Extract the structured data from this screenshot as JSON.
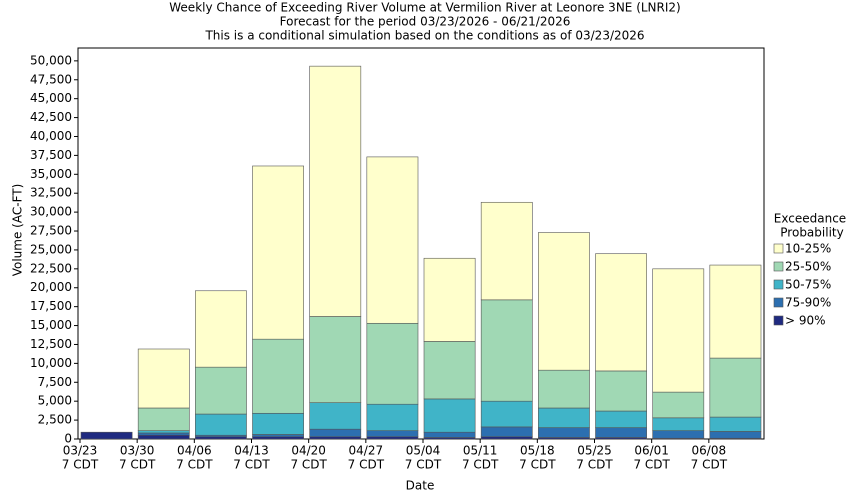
{
  "chart_data": {
    "type": "stacked_bar",
    "title": [
      "Weekly Chance of Exceeding River Volume at Vermilion River at Leonore 3NE (LNRI2)",
      "Forecast for the period 03/23/2026 - 06/21/2026",
      "This is a conditional simulation based on the conditions as of 03/23/2026"
    ],
    "x_label": "Date",
    "y_label": "Volume (AC-FT)",
    "legend_title": [
      "Exceedance",
      "Probability"
    ],
    "legend_position": "right",
    "categories": [
      [
        "03/23",
        "7 CDT"
      ],
      [
        "03/30",
        "7 CDT"
      ],
      [
        "04/06",
        "7 CDT"
      ],
      [
        "04/13",
        "7 CDT"
      ],
      [
        "04/20",
        "7 CDT"
      ],
      [
        "04/27",
        "7 CDT"
      ],
      [
        "05/04",
        "7 CDT"
      ],
      [
        "05/11",
        "7 CDT"
      ],
      [
        "05/18",
        "7 CDT"
      ],
      [
        "05/25",
        "7 CDT"
      ],
      [
        "06/01",
        "7 CDT"
      ],
      [
        "06/08",
        "7 CDT"
      ]
    ],
    "series": [
      {
        "name": "> 90%",
        "color": "#1f2a80",
        "values": [
          900,
          500,
          300,
          300,
          300,
          300,
          200,
          300,
          200,
          200,
          100,
          100
        ]
      },
      {
        "name": "75-90%",
        "color": "#2c6fb0",
        "values": [
          0,
          300,
          200,
          300,
          1000,
          800,
          700,
          1300,
          1300,
          1300,
          1000,
          900
        ]
      },
      {
        "name": "50-75%",
        "color": "#40b4c8",
        "values": [
          0,
          300,
          2800,
          2800,
          3500,
          3500,
          4400,
          3400,
          2600,
          2200,
          1700,
          1900
        ]
      },
      {
        "name": "25-50%",
        "color": "#a0d8b4",
        "values": [
          0,
          3000,
          6200,
          9800,
          11400,
          10700,
          7600,
          13400,
          5000,
          5300,
          3400,
          7800
        ]
      },
      {
        "name": "10-25%",
        "color": "#ffffcc",
        "values": [
          0,
          7800,
          10100,
          22900,
          33100,
          22000,
          11000,
          12900,
          18200,
          15500,
          16300,
          12300
        ]
      }
    ],
    "ylim": [
      0,
      51700
    ],
    "yticks": [
      0,
      {
        "value": 2500,
        "label": "2,500"
      },
      {
        "value": 5000,
        "label": "5,000"
      },
      {
        "value": 7500,
        "label": "7,500"
      },
      {
        "value": 10000,
        "label": "10,000"
      },
      {
        "value": 12500,
        "label": "12,500"
      },
      {
        "value": 15000,
        "label": "15,000"
      },
      {
        "value": 17500,
        "label": "17,500"
      },
      {
        "value": 20000,
        "label": "20,000"
      },
      {
        "value": 22500,
        "label": "22,500"
      },
      {
        "value": 25000,
        "label": "25,000"
      },
      {
        "value": 27500,
        "label": "27,500"
      },
      {
        "value": 30000,
        "label": "30,000"
      },
      {
        "value": 32500,
        "label": "32,500"
      },
      {
        "value": 35000,
        "label": "35,000"
      },
      {
        "value": 37500,
        "label": "37,500"
      },
      {
        "value": 40000,
        "label": "40,000"
      },
      {
        "value": 42500,
        "label": "42,500"
      },
      {
        "value": 45000,
        "label": "45,000"
      },
      {
        "value": 47500,
        "label": "47,500"
      },
      {
        "value": 50000,
        "label": "50,000"
      }
    ],
    "grid": false
  }
}
